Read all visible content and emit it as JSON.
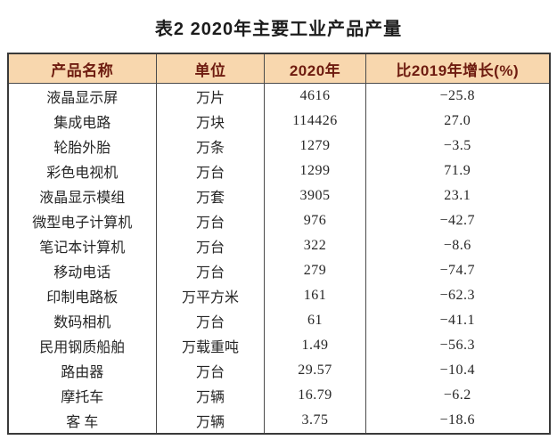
{
  "page": {
    "title": "表2  2020年主要工业产品产量"
  },
  "colors": {
    "header_bg": "#f8d7ae",
    "header_text": "#6e1c10",
    "border": "#4a4a4a",
    "outer_border": "#3a3a3a",
    "body_text": "#262626",
    "page_bg": "#ffffff"
  },
  "table": {
    "headers": [
      "产品名称",
      "单位",
      "2020年",
      "比2019年增长(%)"
    ],
    "rows": [
      {
        "name": "液晶显示屏",
        "unit": "万片",
        "y2020": "4616",
        "growth": "−25.8"
      },
      {
        "name": "集成电路",
        "unit": "万块",
        "y2020": "114426",
        "growth": "27.0"
      },
      {
        "name": "轮胎外胎",
        "unit": "万条",
        "y2020": "1279",
        "growth": "−3.5"
      },
      {
        "name": "彩色电视机",
        "unit": "万台",
        "y2020": "1299",
        "growth": "71.9"
      },
      {
        "name": "液晶显示模组",
        "unit": "万套",
        "y2020": "3905",
        "growth": "23.1"
      },
      {
        "name": "微型电子计算机",
        "unit": "万台",
        "y2020": "976",
        "growth": "−42.7"
      },
      {
        "name": "笔记本计算机",
        "unit": "万台",
        "y2020": "322",
        "growth": "−8.6"
      },
      {
        "name": "移动电话",
        "unit": "万台",
        "y2020": "279",
        "growth": "−74.7"
      },
      {
        "name": "印制电路板",
        "unit": "万平方米",
        "y2020": "161",
        "growth": "−62.3"
      },
      {
        "name": "数码相机",
        "unit": "万台",
        "y2020": "61",
        "growth": "−41.1"
      },
      {
        "name": "民用钢质船舶",
        "unit": "万载重吨",
        "y2020": "1.49",
        "growth": "−56.3"
      },
      {
        "name": "路由器",
        "unit": "万台",
        "y2020": "29.57",
        "growth": "−10.4"
      },
      {
        "name": "摩托车",
        "unit": "万辆",
        "y2020": "16.79",
        "growth": "−6.2"
      },
      {
        "name": "客 车",
        "unit": "万辆",
        "y2020": "3.75",
        "growth": "−18.6"
      }
    ]
  }
}
